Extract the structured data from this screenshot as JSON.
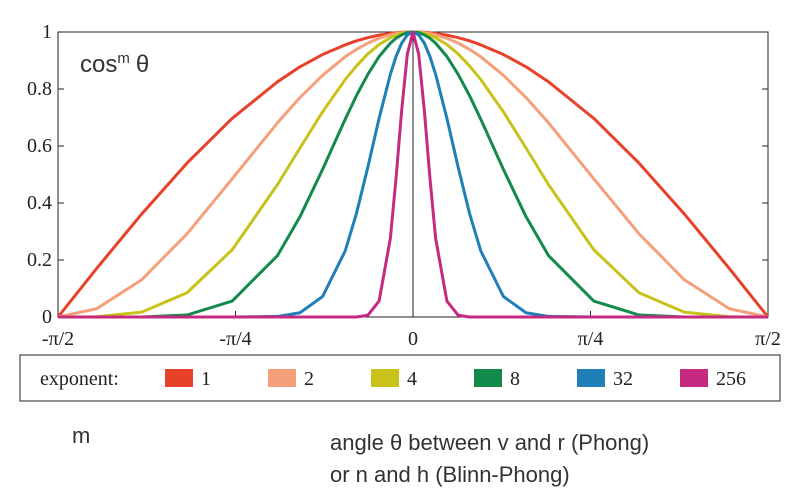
{
  "chart_data": {
    "type": "line",
    "annotation": [
      "cos",
      "m",
      "θ"
    ],
    "x_caption": [
      "angle θ between v and r (Phong)",
      "or n and h (Blinn-Phong)"
    ],
    "y_caption": "m",
    "legend_title": "exponent:",
    "x": [
      -1.5708,
      -1.4,
      -1.2,
      -1.0,
      -0.8,
      -0.6,
      -0.5,
      -0.4,
      -0.3,
      -0.25,
      -0.2,
      -0.15,
      -0.1,
      -0.075,
      -0.05,
      -0.025,
      0,
      0.025,
      0.05,
      0.075,
      0.1,
      0.15,
      0.2,
      0.25,
      0.3,
      0.4,
      0.5,
      0.6,
      0.8,
      1.0,
      1.2,
      1.4,
      1.5708
    ],
    "series": [
      {
        "name": "1",
        "color": "#e8412a",
        "values": [
          0,
          0.17,
          0.362,
          0.54,
          0.697,
          0.825,
          0.878,
          0.921,
          0.955,
          0.969,
          0.98,
          0.989,
          0.995,
          0.997,
          0.999,
          1.0,
          1,
          1.0,
          0.999,
          0.997,
          0.995,
          0.989,
          0.98,
          0.969,
          0.955,
          0.921,
          0.878,
          0.825,
          0.697,
          0.54,
          0.362,
          0.17,
          0
        ]
      },
      {
        "name": "2",
        "color": "#f5a07a",
        "values": [
          0,
          0.029,
          0.131,
          0.292,
          0.485,
          0.681,
          0.77,
          0.848,
          0.913,
          0.939,
          0.961,
          0.978,
          0.99,
          0.994,
          0.998,
          0.999,
          1,
          0.999,
          0.998,
          0.994,
          0.99,
          0.978,
          0.961,
          0.939,
          0.913,
          0.848,
          0.77,
          0.681,
          0.485,
          0.292,
          0.131,
          0.029,
          0
        ]
      },
      {
        "name": "4",
        "color": "#c9c21a",
        "values": [
          0,
          0.001,
          0.017,
          0.085,
          0.236,
          0.464,
          0.593,
          0.72,
          0.833,
          0.881,
          0.923,
          0.956,
          0.98,
          0.989,
          0.995,
          0.999,
          1,
          0.999,
          0.995,
          0.989,
          0.98,
          0.956,
          0.923,
          0.881,
          0.833,
          0.72,
          0.593,
          0.464,
          0.236,
          0.085,
          0.017,
          0.001,
          0
        ]
      },
      {
        "name": "8",
        "color": "#138a4c",
        "values": [
          0,
          0,
          0,
          0.007,
          0.056,
          0.215,
          0.352,
          0.518,
          0.694,
          0.777,
          0.851,
          0.914,
          0.961,
          0.978,
          0.99,
          0.998,
          1,
          0.998,
          0.99,
          0.978,
          0.961,
          0.914,
          0.851,
          0.777,
          0.694,
          0.518,
          0.352,
          0.215,
          0.056,
          0.007,
          0,
          0,
          0
        ]
      },
      {
        "name": "32",
        "color": "#1f7fb7",
        "values": [
          0,
          0,
          0,
          0,
          0,
          0.002,
          0.015,
          0.072,
          0.232,
          0.364,
          0.525,
          0.697,
          0.852,
          0.914,
          0.961,
          0.99,
          1,
          0.99,
          0.961,
          0.914,
          0.852,
          0.697,
          0.525,
          0.364,
          0.232,
          0.072,
          0.015,
          0.002,
          0,
          0,
          0,
          0,
          0
        ]
      },
      {
        "name": "256",
        "color": "#c62a80",
        "values": [
          0,
          0,
          0,
          0,
          0,
          0,
          0,
          0,
          0,
          0,
          0.006,
          0.056,
          0.277,
          0.487,
          0.726,
          0.923,
          1,
          0.923,
          0.726,
          0.487,
          0.277,
          0.056,
          0.006,
          0,
          0,
          0,
          0,
          0,
          0,
          0,
          0,
          0,
          0
        ]
      }
    ],
    "xlim": [
      -1.5708,
      1.5708
    ],
    "xticks": [
      {
        "value": -1.5708,
        "label": "-π/2"
      },
      {
        "value": -0.7854,
        "label": "-π/4"
      },
      0,
      {
        "value": 0.7854,
        "label": "π/4"
      },
      {
        "value": 1.5708,
        "label": "π/2"
      }
    ],
    "ylim": [
      0,
      1
    ],
    "yticks": [
      0,
      0.2,
      0.4,
      0.6,
      0.8,
      1
    ],
    "grid": false
  }
}
